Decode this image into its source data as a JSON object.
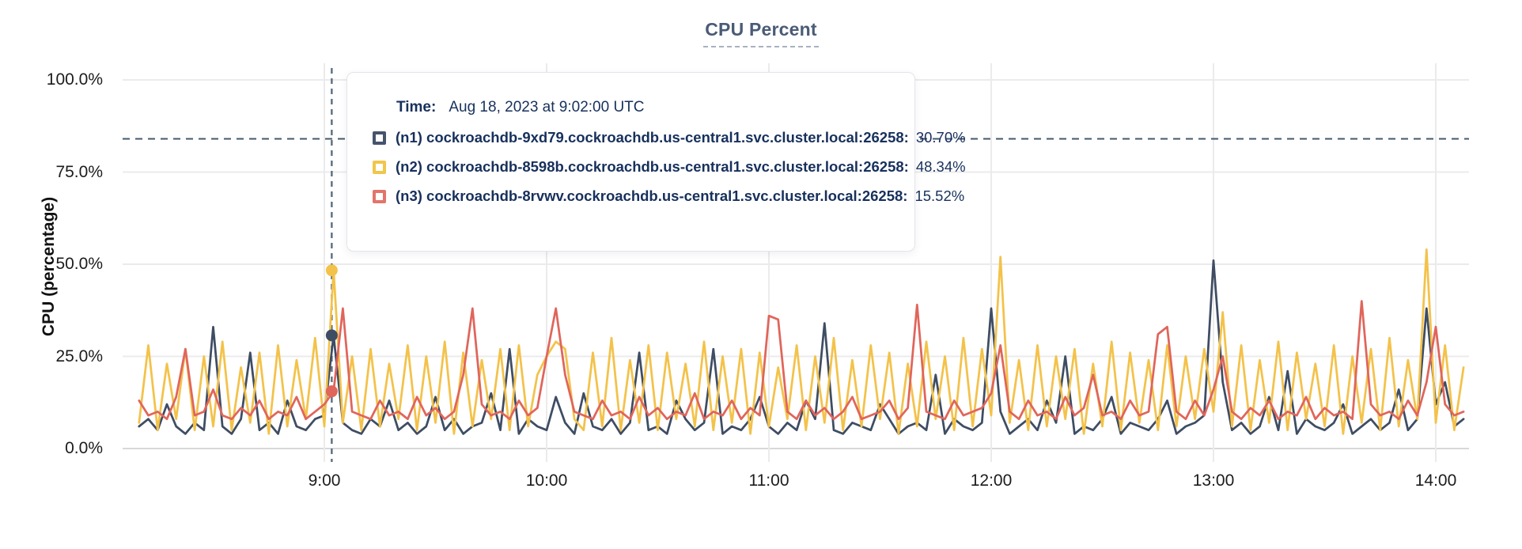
{
  "title": "CPU Percent",
  "axes": {
    "y_title": "CPU (percentage)"
  },
  "tooltip": {
    "time_label": "Time:",
    "time_value": "Aug 18, 2023 at 9:02:00 UTC",
    "rows": [
      {
        "label": "(n1) cockroachdb-9xd79.cockroachdb.us-central1.svc.cluster.local:26258:",
        "value": "30.70%",
        "color": "#46546b"
      },
      {
        "label": "(n2) cockroachdb-8598b.cockroachdb.us-central1.svc.cluster.local:26258:",
        "value": "48.34%",
        "color": "#f0c64b"
      },
      {
        "label": "(n3) cockroachdb-8rvwv.cockroachdb.us-central1.svc.cluster.local:26258:",
        "value": "15.52%",
        "color": "#e2746c"
      }
    ]
  },
  "chart_data": {
    "type": "line",
    "title": "CPU Percent",
    "xlabel": "",
    "ylabel": "CPU (percentage)",
    "ylim": [
      0,
      100
    ],
    "grid": true,
    "legend_position": "tooltip",
    "y_tick_values": [
      100,
      75,
      50,
      25,
      0
    ],
    "y_tick_labels": [
      "100.0%",
      "75.0%",
      "50.0%",
      "25.0%",
      "0.0%"
    ],
    "x_tick_labels": [
      "9:00",
      "10:00",
      "11:00",
      "12:00",
      "13:00",
      "14:00"
    ],
    "x_start_time": "8:10",
    "x_interval_minutes": 2.5,
    "threshold_line_percent": 84,
    "hover_time": "9:02",
    "hover_index": 21,
    "hover_values": [
      30.7,
      48.34,
      15.52
    ],
    "series": [
      {
        "name": "(n1) cockroachdb-9xd79.cockroachdb.us-central1.svc.cluster.local:26258",
        "color": "#3e4d63",
        "values": [
          6,
          8,
          5,
          12,
          6,
          4,
          7,
          5,
          33,
          6,
          4,
          8,
          26,
          5,
          7,
          4,
          13,
          6,
          5,
          8,
          9,
          30.7,
          7,
          5,
          4,
          8,
          6,
          13,
          5,
          7,
          4,
          6,
          14,
          5,
          8,
          4,
          6,
          7,
          15,
          5,
          27,
          4,
          8,
          6,
          5,
          14,
          7,
          4,
          15,
          6,
          5,
          8,
          4,
          7,
          26,
          5,
          6,
          4,
          13,
          8,
          5,
          7,
          27,
          4,
          6,
          5,
          8,
          14,
          6,
          4,
          7,
          5,
          13,
          8,
          34,
          5,
          4,
          7,
          6,
          5,
          12,
          8,
          4,
          6,
          7,
          5,
          20,
          4,
          8,
          6,
          5,
          7,
          38,
          10,
          4,
          6,
          8,
          5,
          13,
          7,
          25,
          4,
          6,
          5,
          8,
          14,
          4,
          7,
          6,
          5,
          8,
          13,
          4,
          6,
          7,
          9,
          51,
          18,
          5,
          7,
          4,
          6,
          14,
          5,
          21,
          4,
          8,
          6,
          5,
          7,
          12,
          4,
          6,
          8,
          5,
          7,
          16,
          5,
          8,
          38,
          12,
          18,
          6,
          8
        ]
      },
      {
        "name": "(n2) cockroachdb-8598b.cockroachdb.us-central1.svc.cluster.local:26258",
        "color": "#f3c24a",
        "values": [
          7,
          28,
          5,
          23,
          8,
          27,
          5,
          25,
          6,
          29,
          5,
          22,
          7,
          26,
          4,
          28,
          6,
          24,
          8,
          30,
          6,
          48.34,
          7,
          25,
          5,
          27,
          6,
          23,
          8,
          28,
          5,
          25,
          7,
          29,
          4,
          26,
          6,
          24,
          8,
          27,
          5,
          28,
          6,
          20,
          25,
          29,
          27,
          8,
          5,
          26,
          6,
          30,
          5,
          24,
          7,
          28,
          5,
          26,
          8,
          23,
          6,
          29,
          5,
          25,
          7,
          27,
          4,
          26,
          6,
          22,
          8,
          28,
          5,
          25,
          7,
          30,
          5,
          24,
          6,
          28,
          8,
          26,
          4,
          23,
          6,
          29,
          8,
          25,
          5,
          30,
          6,
          27,
          9,
          52,
          7,
          24,
          5,
          28,
          6,
          25,
          8,
          27,
          4,
          23,
          6,
          29,
          5,
          26,
          7,
          24,
          5,
          28,
          6,
          25,
          8,
          27,
          10,
          37,
          6,
          28,
          5,
          24,
          7,
          29,
          5,
          26,
          8,
          23,
          6,
          28,
          4,
          25,
          7,
          27,
          5,
          30,
          6,
          24,
          8,
          54,
          7,
          28,
          5,
          22
        ]
      },
      {
        "name": "(n3) cockroachdb-8rvwv.cockroachdb.us-central1.svc.cluster.local:26258",
        "color": "#e0655b",
        "values": [
          13,
          9,
          10,
          8,
          14,
          27,
          9,
          10,
          16,
          9,
          8,
          11,
          9,
          13,
          8,
          10,
          9,
          14,
          8,
          10,
          12,
          15.52,
          38,
          10,
          9,
          8,
          13,
          9,
          10,
          8,
          14,
          9,
          11,
          8,
          10,
          20,
          38,
          12,
          9,
          10,
          8,
          13,
          9,
          11,
          25,
          38,
          20,
          10,
          9,
          8,
          13,
          9,
          10,
          8,
          14,
          9,
          11,
          8,
          10,
          9,
          15,
          8,
          10,
          9,
          13,
          8,
          11,
          9,
          36,
          35,
          10,
          8,
          13,
          9,
          11,
          8,
          10,
          14,
          8,
          9,
          10,
          13,
          8,
          11,
          39,
          10,
          9,
          8,
          13,
          9,
          10,
          11,
          15,
          28,
          10,
          8,
          13,
          9,
          10,
          8,
          14,
          9,
          11,
          20,
          9,
          10,
          8,
          13,
          9,
          10,
          31,
          33,
          10,
          8,
          13,
          9,
          16,
          25,
          10,
          8,
          11,
          9,
          13,
          8,
          10,
          9,
          14,
          8,
          11,
          9,
          10,
          8,
          40,
          12,
          9,
          10,
          8,
          13,
          9,
          18,
          33,
          12,
          9,
          10
        ]
      }
    ]
  },
  "colors": {
    "title": "#4a5b75",
    "tooltip_text": "#17305c",
    "grid": "#ebebeb",
    "axis_line": "#d8d8d8",
    "threshold_dash": "#44596c",
    "hover_dash": "#5a6e80"
  }
}
